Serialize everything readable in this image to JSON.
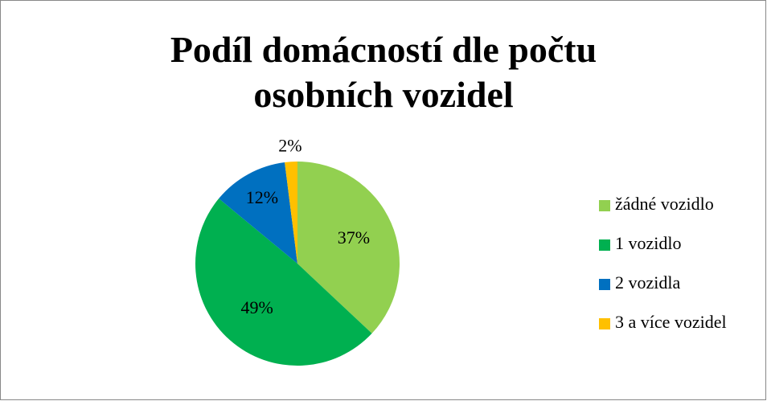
{
  "chart_data": {
    "type": "pie",
    "title": "Podíl domácností dle počtu osobních vozidel",
    "categories": [
      "žádné vozidlo",
      "1 vozidlo",
      "2 vozidla",
      "3 a více vozidel"
    ],
    "values": [
      37,
      49,
      12,
      2
    ],
    "value_labels": [
      "37%",
      "49%",
      "12%",
      "2%"
    ],
    "colors": [
      "#92d050",
      "#00b050",
      "#0070c0",
      "#ffc000"
    ],
    "legend": "right"
  }
}
